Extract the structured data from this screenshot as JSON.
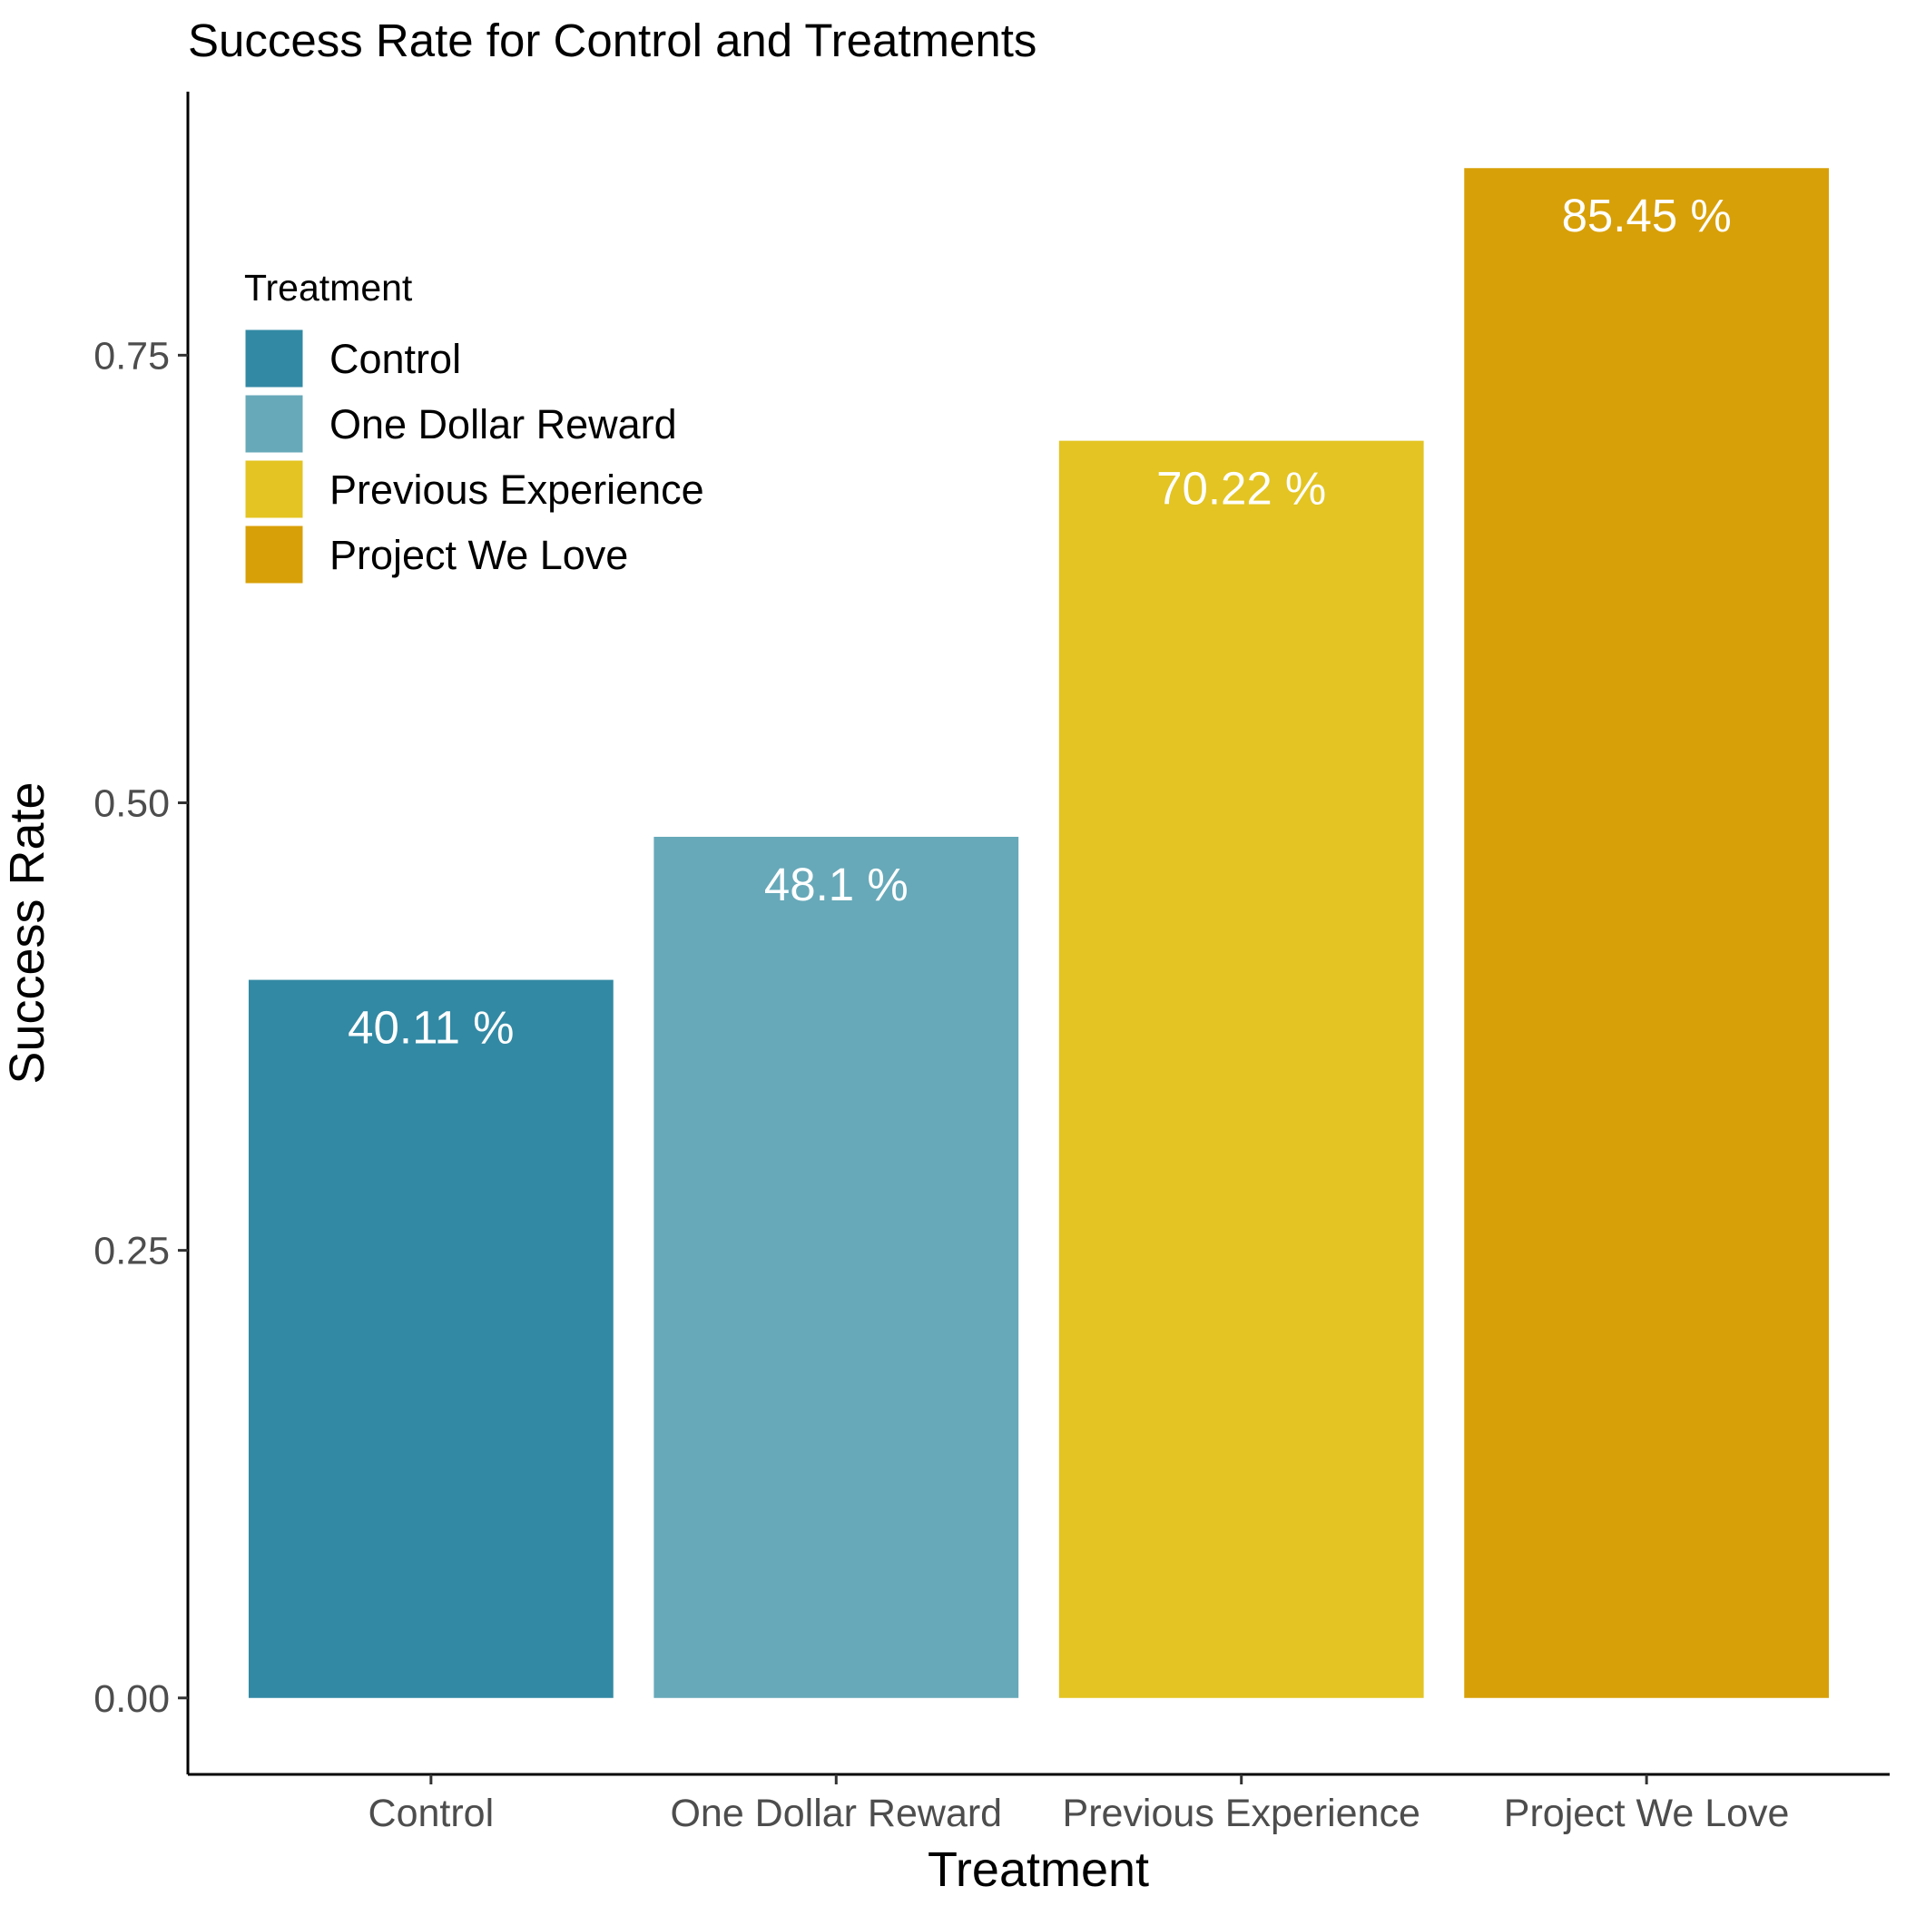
{
  "chart_data": {
    "type": "bar",
    "title": "Success Rate for Control and Treatments",
    "xlabel": "Treatment",
    "ylabel": "Success Rate",
    "categories": [
      "Control",
      "One Dollar Reward",
      "Previous Experience",
      "Project We Love"
    ],
    "values": [
      0.4011,
      0.481,
      0.7022,
      0.8545
    ],
    "value_labels": [
      "40.11 %",
      "48.1 %",
      "70.22 %",
      "85.45 %"
    ],
    "colors": [
      "#3289a4",
      "#67a9b9",
      "#e3c422",
      "#d8a008"
    ],
    "ylim": [
      -0.0427,
      0.8972
    ],
    "yticks": [
      0,
      0.25,
      0.5,
      0.75
    ],
    "ytick_labels": [
      "0.00",
      "0.25",
      "0.50",
      "0.75"
    ],
    "grid": false,
    "legend": {
      "title": "Treatment",
      "position": "top-left",
      "items": [
        "Control",
        "One Dollar Reward",
        "Previous Experience",
        "Project We Love"
      ]
    }
  }
}
